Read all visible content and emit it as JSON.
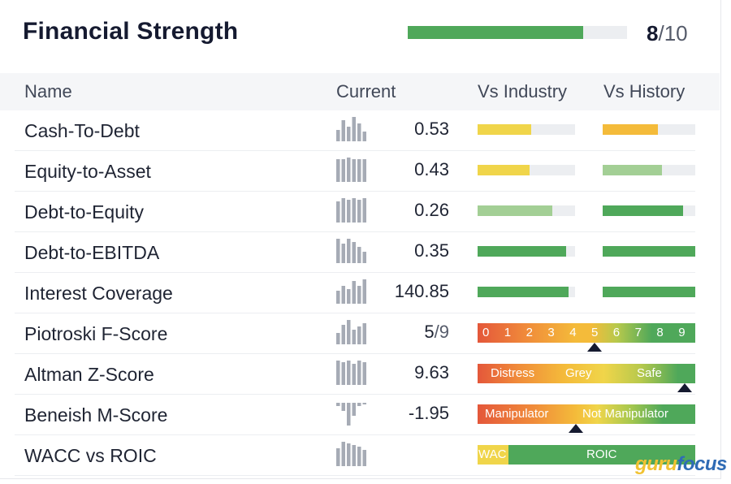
{
  "title": "Financial Strength",
  "score": {
    "value": "8",
    "max": "/10",
    "fraction": 0.8
  },
  "columns": {
    "name": "Name",
    "current": "Current",
    "vs_industry": "Vs Industry",
    "vs_history": "Vs History"
  },
  "colors": {
    "dark_green": "#4fa85a",
    "light_green": "#a3cf95",
    "yellow": "#f0d54a",
    "orange": "#f4bb3a",
    "track": "#eceef1",
    "red": "#e4573a"
  },
  "rows": [
    {
      "name": "Cash-To-Debt",
      "current": "0.53",
      "ind_fraction": 0.55,
      "ind_color": "#f0d54a",
      "hist_fraction": 0.6,
      "hist_color": "#f4bb3a"
    },
    {
      "name": "Equity-to-Asset",
      "current": "0.43",
      "ind_fraction": 0.53,
      "ind_color": "#f0d54a",
      "hist_fraction": 0.64,
      "hist_color": "#a3cf95"
    },
    {
      "name": "Debt-to-Equity",
      "current": "0.26",
      "ind_fraction": 0.77,
      "ind_color": "#a3cf95",
      "hist_fraction": 0.87,
      "hist_color": "#4fa85a"
    },
    {
      "name": "Debt-to-EBITDA",
      "current": "0.35",
      "ind_fraction": 0.91,
      "ind_color": "#4fa85a",
      "hist_fraction": 1.0,
      "hist_color": "#4fa85a"
    },
    {
      "name": "Interest Coverage",
      "current": "140.85",
      "ind_fraction": 0.93,
      "ind_color": "#4fa85a",
      "hist_fraction": 1.0,
      "hist_color": "#4fa85a"
    },
    {
      "name": "Piotroski F-Score",
      "current": "5",
      "current_sub": "/9"
    },
    {
      "name": "Altman Z-Score",
      "current": "9.63"
    },
    {
      "name": "Beneish M-Score",
      "current": "-1.95"
    },
    {
      "name": "WACC vs ROIC",
      "current": ""
    }
  ],
  "piotroski": {
    "scale": [
      "0",
      "1",
      "2",
      "3",
      "4",
      "5",
      "6",
      "7",
      "8",
      "9"
    ],
    "marker": 5
  },
  "altman": {
    "labels": [
      "Distress",
      "Grey",
      "Safe"
    ],
    "marker_fraction": 0.95
  },
  "beneish": {
    "labels": [
      "Manipulator",
      "Not Manipulator"
    ],
    "marker_fraction": 0.45
  },
  "wacc_roic": {
    "wacc_label": "WAC",
    "roic_label": "ROIC"
  },
  "logo": {
    "part1": "guru",
    "part2": "focus"
  }
}
